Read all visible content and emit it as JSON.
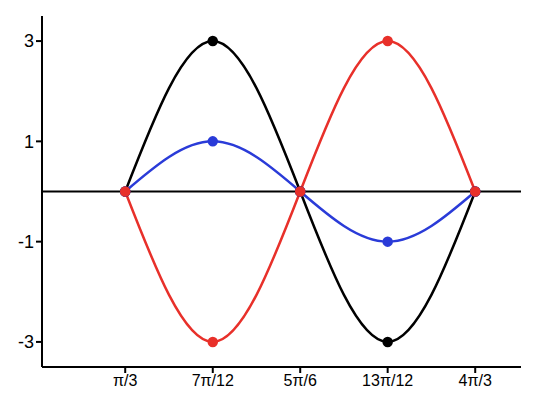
{
  "chart_data": {
    "type": "line",
    "x": [
      1.047,
      1.833,
      2.618,
      3.403,
      4.189
    ],
    "series": [
      {
        "color": "#000000",
        "values": [
          0,
          3,
          0,
          -3,
          0
        ],
        "marker": "circle",
        "line_style": "solid"
      },
      {
        "color": "#2a3bd8",
        "values": [
          0,
          1,
          0,
          -1,
          0
        ],
        "marker": "circle",
        "line_style": "solid"
      },
      {
        "color": "#e8302a",
        "values": [
          0,
          -3,
          0,
          3,
          0
        ],
        "marker": "circle",
        "line_style": "solid"
      }
    ],
    "xlim": [
      0.3,
      4.6
    ],
    "xticks": [
      {
        "value": 1.047,
        "label": "π/3"
      },
      {
        "value": 1.833,
        "label": "7π/12"
      },
      {
        "value": 2.618,
        "label": "5π/6"
      },
      {
        "value": 3.403,
        "label": "13π/12"
      },
      {
        "value": 4.189,
        "label": "4π/3"
      }
    ],
    "ylim": [
      -3.5,
      3.5
    ],
    "yticks": [
      -3,
      -1,
      1,
      3
    ],
    "grid": false
  }
}
